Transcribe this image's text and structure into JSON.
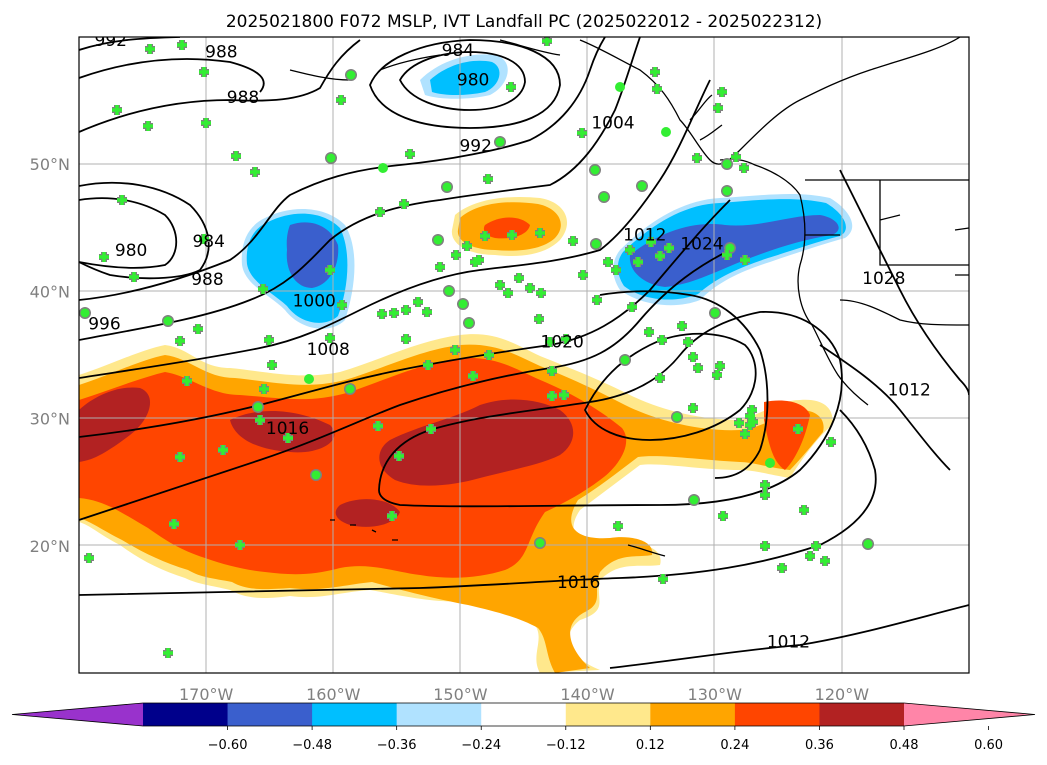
{
  "title": "2025021800 F072 MSLP, IVT Landfall PC (2025022012 - 2025022312)",
  "map": {
    "lon_range": [
      -180,
      -110
    ],
    "lat_range": [
      10,
      60
    ],
    "gridlines": true,
    "lon_ticks": [
      {
        "value": -170,
        "label": "170°W"
      },
      {
        "value": -160,
        "label": "160°W"
      },
      {
        "value": -150,
        "label": "150°W"
      },
      {
        "value": -140,
        "label": "140°W"
      },
      {
        "value": -130,
        "label": "130°W"
      },
      {
        "value": -120,
        "label": "120°W"
      }
    ],
    "lat_ticks": [
      {
        "value": 50,
        "label": "50°N"
      },
      {
        "value": 40,
        "label": "40°N"
      },
      {
        "value": 30,
        "label": "30°N"
      },
      {
        "value": 20,
        "label": "20°N"
      }
    ],
    "contour_labels": [
      {
        "text": "992",
        "lon": -177.5,
        "lat": 59.3
      },
      {
        "text": "988",
        "lon": -168.8,
        "lat": 58.4
      },
      {
        "text": "984",
        "lon": -150.2,
        "lat": 58.5
      },
      {
        "text": "980",
        "lon": -149.0,
        "lat": 56.2
      },
      {
        "text": "988",
        "lon": -167.1,
        "lat": 54.8
      },
      {
        "text": "992",
        "lon": -148.8,
        "lat": 51.0
      },
      {
        "text": "1004",
        "lon": -138.0,
        "lat": 52.8
      },
      {
        "text": "980",
        "lon": -175.9,
        "lat": 42.8
      },
      {
        "text": "984",
        "lon": -169.8,
        "lat": 43.5
      },
      {
        "text": "988",
        "lon": -169.9,
        "lat": 40.5
      },
      {
        "text": "1000",
        "lon": -161.5,
        "lat": 38.8
      },
      {
        "text": "996",
        "lon": -178.0,
        "lat": 37.0
      },
      {
        "text": "1008",
        "lon": -160.4,
        "lat": 35.0
      },
      {
        "text": "1012",
        "lon": -135.5,
        "lat": 44.0
      },
      {
        "text": "1024",
        "lon": -131.0,
        "lat": 43.3
      },
      {
        "text": "1020",
        "lon": -142.0,
        "lat": 35.6
      },
      {
        "text": "1016",
        "lon": -163.6,
        "lat": 28.8
      },
      {
        "text": "1028",
        "lon": -116.7,
        "lat": 40.6
      },
      {
        "text": "1012",
        "lon": -114.7,
        "lat": 31.8
      },
      {
        "text": "1016",
        "lon": -140.7,
        "lat": 16.7
      },
      {
        "text": "1012",
        "lon": -124.2,
        "lat": 12.0
      }
    ]
  },
  "colorbar": {
    "colors": [
      "#9932cc",
      "#00008b",
      "#3a5fcd",
      "#00bfff",
      "#b0e2ff",
      "#ffffff",
      "#ffe88c",
      "#ffa500",
      "#ff4500",
      "#b22222",
      "#ff85a8"
    ],
    "labels": [
      "−0.60",
      "−0.48",
      "−0.36",
      "−0.24",
      "−0.12",
      "0.12",
      "0.24",
      "0.36",
      "0.48",
      "0.60"
    ],
    "levels": [
      -0.6,
      -0.48,
      -0.36,
      -0.24,
      -0.12,
      0.12,
      0.24,
      0.36,
      0.48,
      0.6
    ],
    "extend": "both"
  },
  "colors": {
    "marker_green": "#33ee33",
    "marker_edge": "#808080",
    "contour": "#000000"
  }
}
